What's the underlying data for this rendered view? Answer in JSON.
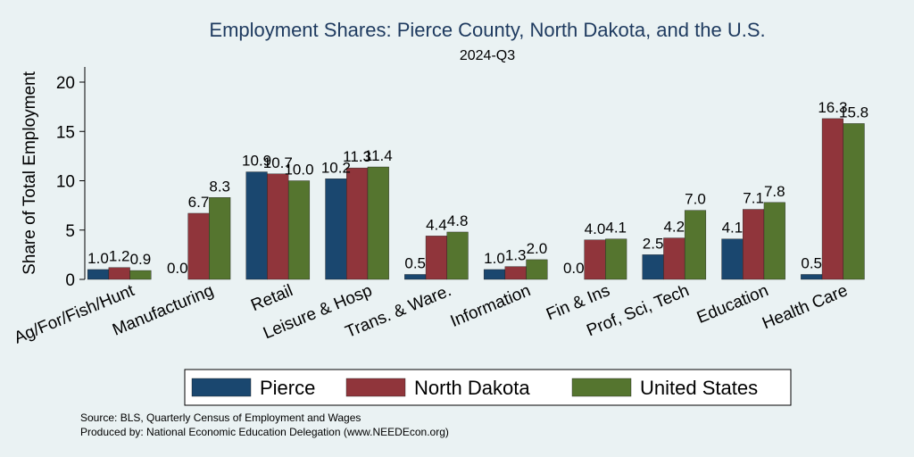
{
  "chart_data": {
    "type": "bar",
    "title": "Employment Shares: Pierce County, North Dakota, and the U.S.",
    "subtitle": "2024-Q3",
    "xlabel": "",
    "ylabel": "Share of Total Employment",
    "ylim": [
      0,
      21.5
    ],
    "yticks": [
      "0",
      "5",
      "10",
      "15",
      "20"
    ],
    "grid": false,
    "legend_position": "bottom",
    "categories": [
      "Ag/For/Fish/Hunt",
      "Manufacturing",
      "Retail",
      "Leisure & Hosp",
      "Trans. & Ware.",
      "Information",
      "Fin & Ins",
      "Prof, Sci, Tech",
      "Education",
      "Health Care"
    ],
    "series": [
      {
        "name": "Pierce",
        "color": "#1a476f",
        "values": [
          1.0,
          0.0,
          10.9,
          10.2,
          0.5,
          1.0,
          0.0,
          2.5,
          4.1,
          0.5
        ],
        "labels": [
          "1.0",
          "0.0",
          "10.9",
          "10.2",
          "0.5",
          "1.0",
          "0.0",
          "2.5",
          "4.1",
          "0.5"
        ]
      },
      {
        "name": "North Dakota",
        "color": "#90353b",
        "values": [
          1.2,
          6.7,
          10.7,
          11.3,
          4.4,
          1.3,
          4.0,
          4.2,
          7.1,
          16.3
        ],
        "labels": [
          "1.2",
          "6.7",
          "10.7",
          "11.3",
          "4.4",
          "1.3",
          "4.0",
          "4.2",
          "7.1",
          "16.3"
        ]
      },
      {
        "name": "United States",
        "color": "#55752f",
        "values": [
          0.9,
          8.3,
          10.0,
          11.4,
          4.8,
          2.0,
          4.1,
          7.0,
          7.8,
          15.8
        ],
        "labels": [
          "0.9",
          "8.3",
          "10.0",
          "11.4",
          "4.8",
          "2.0",
          "4.1",
          "7.0",
          "7.8",
          "15.8"
        ]
      }
    ]
  },
  "notes": {
    "source": "Source: BLS, Quarterly Census of Employment and Wages",
    "produced_by": "Produced by: National Economic Education Delegation (www.NEEDEcon.org)"
  }
}
